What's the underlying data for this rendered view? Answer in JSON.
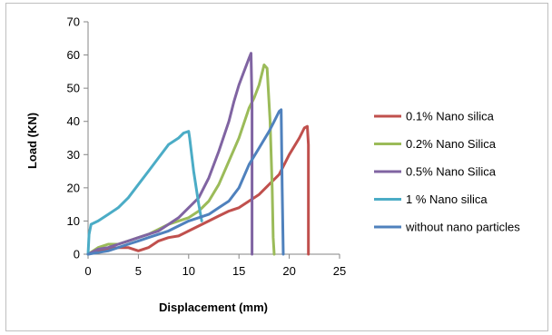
{
  "chart_data": {
    "type": "line",
    "title": "",
    "xlabel": "Displacement (mm)",
    "ylabel": "Load (KN)",
    "xlim": [
      0,
      25
    ],
    "ylim": [
      0,
      70
    ],
    "x_ticks": [
      0,
      5,
      10,
      15,
      20,
      25
    ],
    "y_ticks": [
      0,
      10,
      20,
      30,
      40,
      50,
      60,
      70
    ],
    "grid": false,
    "legend_position": "right",
    "series": [
      {
        "name": "0.1%  Nano silica",
        "color": "#c0504d",
        "x": [
          0,
          1,
          2,
          3,
          4,
          5,
          6,
          7,
          8,
          9,
          10,
          11,
          12,
          13,
          14,
          15,
          16,
          17,
          18,
          19,
          20,
          21,
          21.5,
          21.8,
          21.9,
          21.9
        ],
        "y": [
          0,
          1,
          1.5,
          2,
          2,
          1,
          2,
          4,
          5,
          5.5,
          7,
          8.5,
          10,
          11.5,
          13,
          14,
          16,
          18,
          21,
          24,
          30,
          35,
          38,
          38.5,
          33,
          0
        ]
      },
      {
        "name": "0.2% Nano Silica",
        "color": "#9bbb59",
        "x": [
          0,
          1,
          2,
          3,
          4,
          5,
          6,
          7,
          8,
          9,
          10,
          11,
          12,
          13,
          14,
          15,
          16,
          16.5,
          17,
          17.5,
          17.8,
          18.1,
          18.3,
          18.4,
          18.5
        ],
        "y": [
          0,
          2,
          3,
          3,
          4,
          5,
          6,
          7.5,
          9,
          10,
          11,
          13,
          16,
          21,
          28,
          35,
          44,
          47,
          51,
          57,
          56,
          40,
          20,
          5,
          0
        ]
      },
      {
        "name": "0.5% Nano Silica",
        "color": "#8064a2",
        "x": [
          0,
          1,
          2,
          3,
          4,
          5,
          6,
          7,
          8,
          9,
          10,
          11,
          12,
          13,
          14,
          14.5,
          15,
          15.5,
          16,
          16.2,
          16.3,
          16.3
        ],
        "y": [
          0,
          1.5,
          2,
          3,
          4,
          5,
          6,
          7,
          9,
          11,
          14,
          17,
          23,
          31,
          40,
          46,
          51,
          55,
          59,
          60.5,
          45,
          0
        ]
      },
      {
        "name": "1 % Nano silica",
        "color": "#4bacc6",
        "x": [
          0,
          0.1,
          0.3,
          1,
          2,
          3,
          4,
          5,
          6,
          7,
          8,
          9,
          9.5,
          10,
          10.1,
          10.5,
          11,
          11.3
        ],
        "y": [
          0,
          6,
          9,
          10,
          12,
          14,
          17,
          21,
          25,
          29,
          33,
          35,
          36.5,
          37,
          35,
          25,
          15,
          10
        ]
      },
      {
        "name": "without nano particles",
        "color": "#4f81bd",
        "x": [
          0,
          1,
          2,
          3,
          4,
          5,
          6,
          7,
          8,
          9,
          10,
          11,
          12,
          13,
          14,
          15,
          16,
          17,
          18,
          18.5,
          19,
          19.2,
          19.3,
          19.4
        ],
        "y": [
          0,
          0.5,
          1,
          2,
          3,
          4,
          5,
          6,
          7,
          8.5,
          10,
          11,
          12,
          14,
          16,
          20,
          27,
          32,
          37,
          40,
          43,
          43.5,
          20,
          0
        ]
      }
    ]
  }
}
